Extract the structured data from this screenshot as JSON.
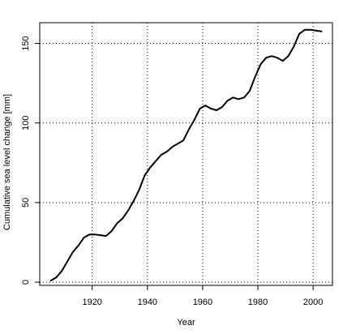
{
  "chart_data": {
    "type": "line",
    "title": "",
    "xlabel": "Year",
    "ylabel": "Cumulative sea level change [mm]",
    "xlim": [
      1901,
      2007
    ],
    "ylim": [
      -2,
      163
    ],
    "grid": true,
    "x_ticks": [
      1920,
      1940,
      1960,
      1980,
      2000
    ],
    "y_ticks": [
      0,
      50,
      100,
      150
    ],
    "series": [
      {
        "color": "#000000",
        "x": [
          1905,
          1907,
          1909,
          1911,
          1913,
          1915,
          1917,
          1919,
          1921,
          1923,
          1925,
          1927,
          1929,
          1931,
          1933,
          1935,
          1937,
          1939,
          1941,
          1943,
          1945,
          1947,
          1949,
          1951,
          1953,
          1955,
          1957,
          1959,
          1961,
          1963,
          1965,
          1967,
          1969,
          1971,
          1973,
          1975,
          1977,
          1979,
          1981,
          1983,
          1985,
          1987,
          1989,
          1991,
          1993,
          1995,
          1997,
          1999,
          2001,
          2003
        ],
        "y": [
          1,
          3,
          7,
          13,
          19,
          23,
          28,
          30,
          30,
          29.5,
          29,
          32,
          37,
          40,
          45,
          51,
          58,
          67,
          72,
          76,
          80,
          82,
          85,
          87,
          89,
          96,
          102,
          109,
          111,
          109,
          108,
          110,
          114,
          116,
          115,
          116,
          120,
          129,
          137,
          141,
          142,
          141,
          139,
          142,
          148,
          156,
          158.5,
          158.5,
          158,
          157.5
        ]
      }
    ]
  }
}
